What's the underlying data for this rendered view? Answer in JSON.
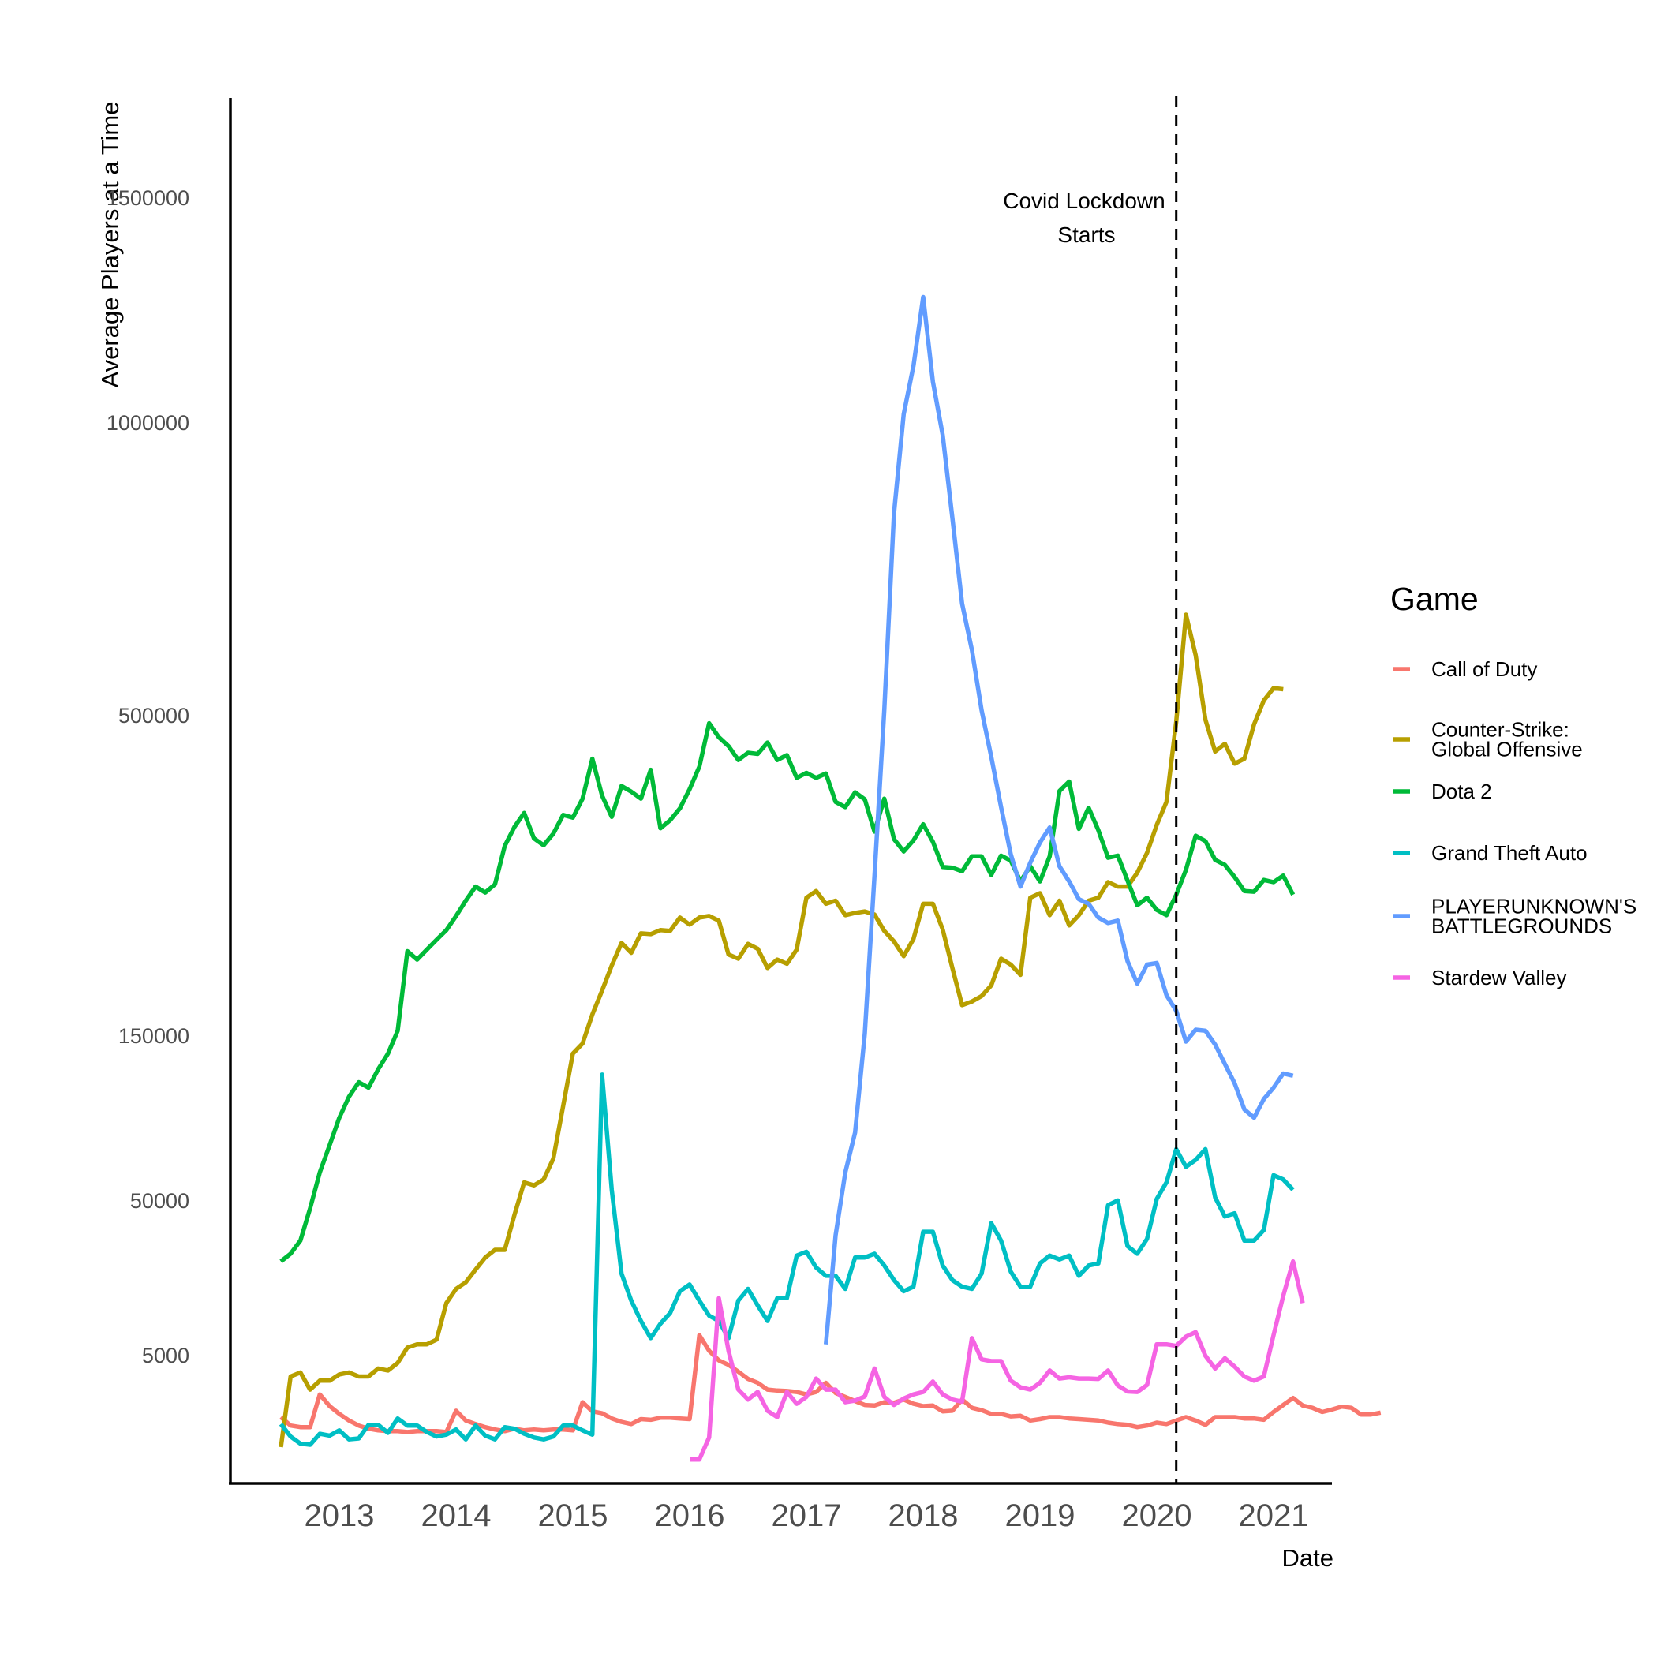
{
  "chart_data": {
    "type": "line",
    "title": "",
    "xlabel": "Date",
    "ylabel": "Average Players at a Time",
    "x_ticks": [
      "2013",
      "2014",
      "2015",
      "2016",
      "2017",
      "2018",
      "2019",
      "2020",
      "2021"
    ],
    "y_ticks": [
      "5000",
      "50000",
      "150000",
      "500000",
      "1000000",
      "1500000"
    ],
    "y_scale": "sqrt",
    "xlim": [
      "2012-03",
      "2021-07"
    ],
    "ylim": [
      0,
      1700000
    ],
    "grid": false,
    "legend_title": "Game",
    "legend_position": "right",
    "annotation": {
      "date": "2020-03",
      "lines": [
        "Covid Lockdown",
        "Starts"
      ],
      "style": "dashed vertical line"
    },
    "series": [
      {
        "name": "Call of Duty",
        "label_lines": [
          "Call of Duty"
        ],
        "color": "#F8766D",
        "start": "2012-07",
        "values": [
          5000,
          3800,
          3600,
          3600,
          9000,
          6800,
          5500,
          4500,
          3800,
          3400,
          3200,
          3100,
          3100,
          3000,
          3100,
          3100,
          3100,
          3000,
          6000,
          4500,
          4000,
          3600,
          3300,
          3100,
          3400,
          3200,
          3300,
          3200,
          3300,
          3300,
          3200,
          7500,
          5900,
          5600,
          4800,
          4300,
          4000,
          4700,
          4600,
          4900,
          4900,
          4800,
          4700,
          25000,
          20000,
          17200,
          16000,
          14200,
          12400,
          11500,
          10000,
          9800,
          9700,
          9500,
          9000,
          9500,
          11500,
          9300,
          8500,
          7700,
          7000,
          6900,
          7500,
          7400,
          8000,
          7200,
          6800,
          6900,
          5900,
          6000,
          8000,
          6500,
          6100,
          5500,
          5500,
          5100,
          5200,
          4500,
          4700,
          5000,
          5000,
          4800,
          4700,
          4600,
          4500,
          4200,
          4000,
          3900,
          3600,
          3800,
          4200,
          4000,
          4500,
          5000,
          4500,
          3900,
          5000,
          5000,
          5000,
          4800,
          4800,
          4600,
          5800,
          7000,
          8300,
          6900,
          6500,
          5800,
          6200,
          6700,
          6500,
          5400,
          5400,
          5700
        ]
      },
      {
        "name": "Counter-Strike: Global Offensive",
        "label_lines": [
          "Counter-Strike:",
          "Global Offensive"
        ],
        "color": "#B79F00",
        "start": "2012-07",
        "values": [
          1500,
          13000,
          14000,
          10000,
          12000,
          12000,
          13500,
          14000,
          13000,
          13000,
          15000,
          14500,
          16500,
          21000,
          22000,
          22000,
          23500,
          37000,
          43000,
          46000,
          52000,
          58000,
          62000,
          62000,
          82000,
          103000,
          101000,
          105000,
          120000,
          162000,
          210000,
          220000,
          250000,
          276000,
          305000,
          332000,
          320000,
          344000,
          343000,
          348000,
          347000,
          364000,
          355000,
          364000,
          366000,
          360000,
          318000,
          313000,
          331000,
          325000,
          302000,
          312000,
          307000,
          324000,
          390000,
          399000,
          382000,
          386000,
          367000,
          370000,
          372000,
          368000,
          347000,
          334000,
          316000,
          337000,
          382000,
          382000,
          349000,
          302000,
          260000,
          264000,
          270000,
          282000,
          313000,
          306000,
          294000,
          390000,
          396000,
          367000,
          386000,
          354000,
          367000,
          386000,
          390000,
          411000,
          405000,
          405000,
          424000,
          452000,
          493000,
          528000,
          660000,
          858000,
          780000,
          663000,
          609000,
          622000,
          589000,
          597000,
          655000,
          697000,
          719000,
          717000
        ]
      },
      {
        "name": "Dota 2",
        "label_lines": [
          "Dota 2"
        ],
        "color": "#00BA38",
        "start": "2012-07",
        "values": [
          56000,
          60000,
          67000,
          86000,
          110000,
          130000,
          152000,
          170000,
          183000,
          178000,
          195000,
          210000,
          233000,
          322000,
          312000,
          324000,
          336000,
          348000,
          366000,
          386000,
          405000,
          397000,
          408000,
          462000,
          490000,
          511000,
          473000,
          463000,
          480000,
          508000,
          504000,
          533000,
          597000,
          538000,
          505000,
          553000,
          544000,
          533000,
          579000,
          488000,
          500000,
          518000,
          548000,
          584000,
          657000,
          633000,
          618000,
          595000,
          607000,
          605000,
          624000,
          595000,
          603000,
          566000,
          574000,
          566000,
          573000,
          528000,
          520000,
          543000,
          532000,
          483000,
          533000,
          472000,
          454000,
          470000,
          494000,
          468000,
          432000,
          431000,
          426000,
          447000,
          447000,
          421000,
          448000,
          441000,
          412000,
          433000,
          412000,
          447000,
          545000,
          560000,
          487000,
          519000,
          485000,
          445000,
          448000,
          413000,
          380000,
          390000,
          374000,
          367000,
          394000,
          428000,
          477000,
          469000,
          442000,
          435000,
          418000,
          399000,
          398000,
          414000,
          411000,
          420000,
          394000
        ]
      },
      {
        "name": "Grand Theft Auto",
        "label_lines": [
          "Grand Theft Auto"
        ],
        "color": "#00BFC4",
        "start": "2012-07",
        "values": [
          4000,
          2500,
          1800,
          1700,
          2800,
          2600,
          3200,
          2200,
          2300,
          3900,
          3900,
          2900,
          4800,
          3800,
          3800,
          3000,
          2500,
          2700,
          3300,
          2200,
          3800,
          2600,
          2200,
          3600,
          3400,
          2800,
          2400,
          2200,
          2500,
          3800,
          3800,
          3200,
          2700,
          190000,
          98000,
          50000,
          38000,
          30000,
          24000,
          29000,
          33000,
          42000,
          45000,
          38000,
          32000,
          30000,
          24000,
          38000,
          43000,
          36000,
          30000,
          39000,
          39000,
          59000,
          61000,
          53000,
          49000,
          49000,
          43000,
          58000,
          58000,
          60000,
          54000,
          47000,
          42000,
          44000,
          72000,
          72000,
          54000,
          47000,
          44000,
          43000,
          50000,
          77000,
          67000,
          51000,
          44000,
          44000,
          55000,
          59000,
          57000,
          59000,
          49000,
          54000,
          55000,
          88000,
          91000,
          64000,
          60000,
          68000,
          92000,
          103000,
          127000,
          114000,
          119000,
          127000,
          93000,
          81000,
          83000,
          67000,
          67000,
          73000,
          108000,
          105000,
          98000
        ]
      },
      {
        "name": "PLAYERUNKNOWN'S BATTLEGROUNDS",
        "label_lines": [
          "PLAYERUNKNOWN'S",
          "BATTLEGROUNDS"
        ],
        "color": "#619CFF",
        "start": "2017-03",
        "values": [
          22000,
          70000,
          110000,
          140000,
          230000,
          420000,
          680000,
          1070000,
          1300000,
          1420000,
          1600000,
          1380000,
          1250000,
          1060000,
          880000,
          790000,
          680000,
          600000,
          520000,
          450000,
          405000,
          438000,
          467000,
          489000,
          433000,
          412000,
          388000,
          382000,
          364000,
          357000,
          360000,
          310000,
          284000,
          306000,
          308000,
          271000,
          254000,
          222000,
          234000,
          233000,
          219000,
          200000,
          182000,
          159000,
          152000,
          168000,
          178000,
          191000,
          189000
        ]
      },
      {
        "name": "Stardew Valley",
        "label_lines": [
          "Stardew Valley"
        ],
        "color": "#F564E3",
        "start": "2016-01",
        "values": [
          650,
          650,
          2400,
          39000,
          20000,
          10000,
          8000,
          9500,
          6000,
          5000,
          9500,
          7200,
          8500,
          12500,
          10000,
          10000,
          7500,
          7800,
          8600,
          15000,
          8500,
          7000,
          8200,
          9000,
          9500,
          11800,
          9000,
          8000,
          7600,
          24000,
          17500,
          17000,
          17000,
          12000,
          10500,
          10000,
          11500,
          14500,
          12500,
          12800,
          12500,
          12500,
          12400,
          14500,
          10900,
          9600,
          9500,
          11000,
          22000,
          22000,
          21500,
          24500,
          26000,
          18500,
          15000,
          17800,
          15500,
          13000,
          12000,
          13000,
          25000,
          40000,
          56000,
          37000
        ]
      }
    ]
  }
}
